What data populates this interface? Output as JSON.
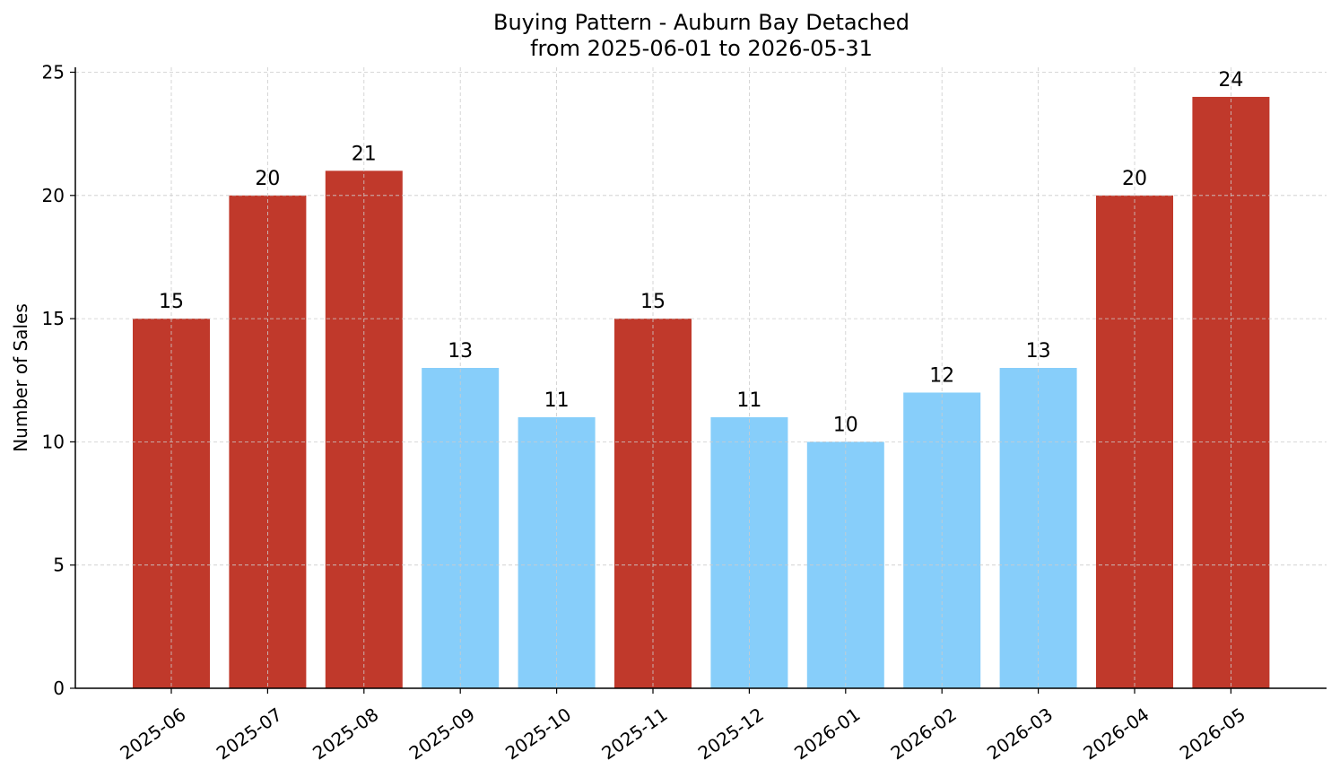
{
  "chart_data": {
    "type": "bar",
    "title": "Buying Pattern - Auburn Bay Detached",
    "subtitle": "from 2025-06-01 to 2026-05-31",
    "xlabel": "",
    "ylabel": "Number of Sales",
    "categories": [
      "2025-06",
      "2025-07",
      "2025-08",
      "2025-09",
      "2025-10",
      "2025-11",
      "2025-12",
      "2026-01",
      "2026-02",
      "2026-03",
      "2026-04",
      "2026-05"
    ],
    "values": [
      15,
      20,
      21,
      13,
      11,
      15,
      11,
      10,
      12,
      13,
      20,
      24
    ],
    "bar_colors": [
      "#c0392b",
      "#c0392b",
      "#c0392b",
      "#87cefa",
      "#87cefa",
      "#c0392b",
      "#87cefa",
      "#87cefa",
      "#87cefa",
      "#87cefa",
      "#c0392b",
      "#c0392b"
    ],
    "yticks": [
      0,
      5,
      10,
      15,
      20,
      25
    ],
    "ylim": [
      0,
      25.2
    ],
    "grid": true,
    "legend": "none"
  }
}
